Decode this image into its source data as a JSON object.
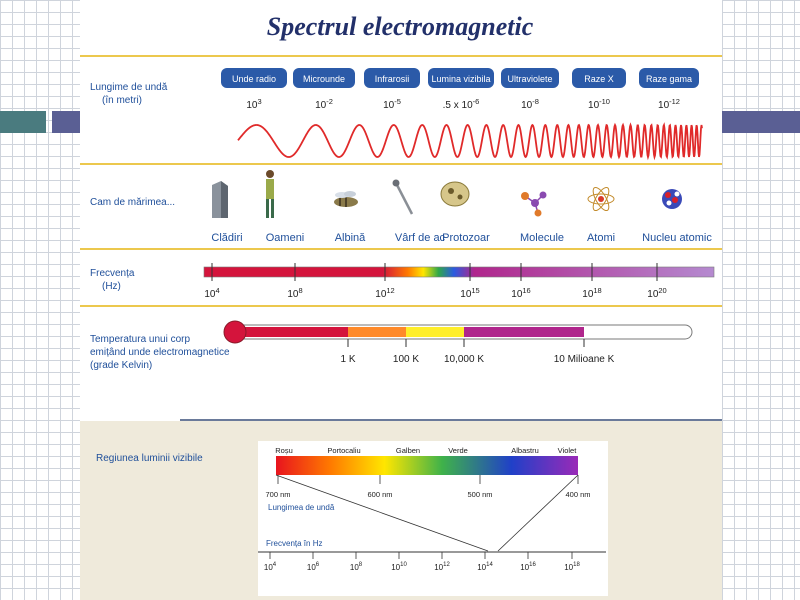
{
  "title": "Spectrul electromagnetic",
  "rows": {
    "wavelength_label": [
      "Lungime de undă",
      "(în metri)"
    ],
    "size_label": "Cam de mărimea...",
    "frequency_label": [
      "Frecvența",
      "(Hz)"
    ],
    "temperature_label": [
      "Temperatura unui corp",
      "emițând unde electromagnetice",
      "(grade Kelvin)"
    ]
  },
  "bands": [
    {
      "name": "Unde radio",
      "exp": "10^3"
    },
    {
      "name": "Microunde",
      "exp": "10^-2"
    },
    {
      "name": "Infrarosii",
      "exp": "10^-5"
    },
    {
      "name": "Lumina vizibila",
      "exp": ".5 x 10^-6"
    },
    {
      "name": "Ultraviolete",
      "exp": "10^-8"
    },
    {
      "name": "Raze X",
      "exp": "10^-10"
    },
    {
      "name": "Raze gama",
      "exp": "10^-12"
    }
  ],
  "sizes": [
    "Clădiri",
    "Oameni",
    "Albină",
    "Vârf de ac",
    "Protozoar",
    "Molecule",
    "Atomi",
    "Nucleu atomic"
  ],
  "frequency_ticks": [
    "10^4",
    "10^8",
    "10^12",
    "10^15",
    "10^16",
    "10^18",
    "10^20"
  ],
  "temperature_ticks": [
    "1 K",
    "100 K",
    "10,000 K",
    "10 Milioane K"
  ],
  "visible": {
    "section_label": "Regiunea luminii vizibile",
    "colors": [
      "Roșu",
      "Portocaliu",
      "Galben",
      "Verde",
      "Albastru",
      "Violet"
    ],
    "wavelengths": [
      "700 nm",
      "600 nm",
      "500 nm",
      "400 nm"
    ],
    "wavelength_caption": "Lungimea de undă",
    "frequency_caption": "Frecvența în Hz",
    "frequency_ticks": [
      "10^4",
      "10^6",
      "10^8",
      "10^10",
      "10^12",
      "10^14",
      "10^16",
      "10^18"
    ]
  },
  "colors": {
    "header_blue": "#2b5aa8",
    "divider_gold": "#ecc84e",
    "title_navy": "#22306a",
    "text_blue": "#1f4f9a",
    "wave_red": "#e02a2a",
    "panel_beige": "#efeadb"
  }
}
